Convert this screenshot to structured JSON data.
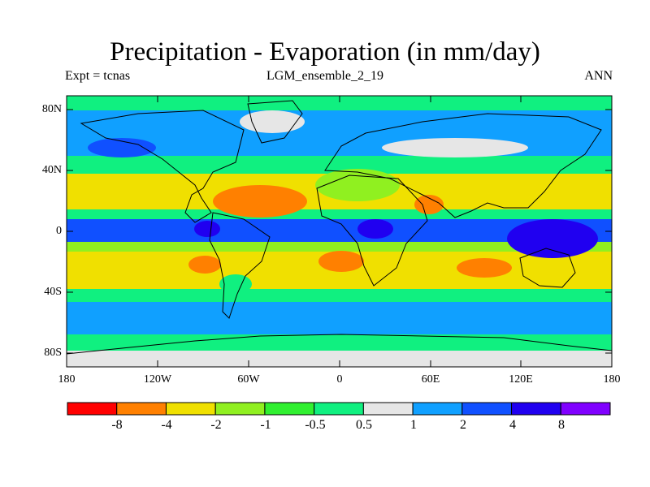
{
  "title": "Precipitation - Evaporation (in mm/day)",
  "subtitle_left": "Expt = tcnas",
  "subtitle_center": "LGM_ensemble_2_19",
  "subtitle_right": "ANN",
  "lat_ticks": [
    "80N",
    "40N",
    "0",
    "40S",
    "80S"
  ],
  "lon_ticks": [
    "180",
    "120W",
    "60W",
    "0",
    "60E",
    "120E",
    "180"
  ],
  "colorbar": {
    "labels": [
      "-8",
      "-4",
      "-2",
      "-1",
      "-0.5",
      "0.5",
      "1",
      "2",
      "4",
      "8"
    ],
    "colors": [
      "#ff0000",
      "#ff8000",
      "#f0e000",
      "#90f020",
      "#30f030",
      "#10f080",
      "#e6e6e6",
      "#10a0ff",
      "#1050ff",
      "#2000f0",
      "#8000ff"
    ]
  },
  "palette": {
    "ocean_subtropic": "#f0e000",
    "ocean_equator": "#1050ff",
    "land_outline": "#000000"
  }
}
